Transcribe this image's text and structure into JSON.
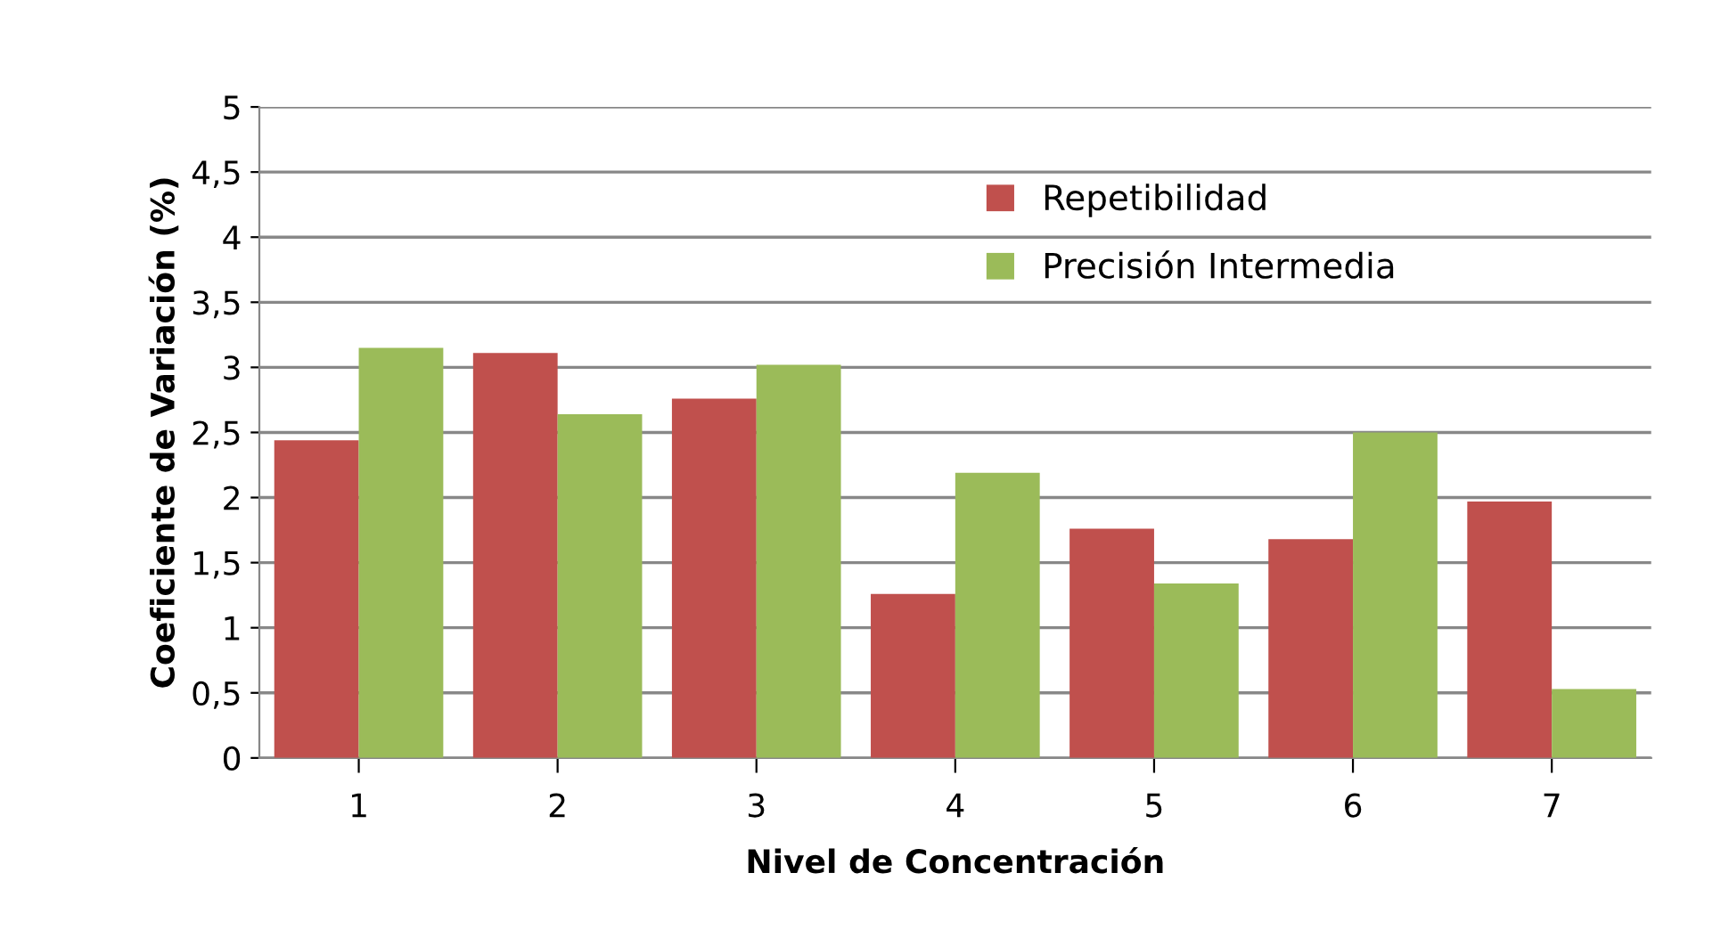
{
  "chart_data": {
    "type": "bar",
    "xlabel": "Nivel de Concentración",
    "ylabel": "Coeficiente de Variación (%)",
    "categories": [
      "1",
      "2",
      "3",
      "4",
      "5",
      "6",
      "7"
    ],
    "series": [
      {
        "name": "Repetibilidad",
        "color": "#c0504d",
        "values": [
          2.44,
          3.11,
          2.76,
          1.26,
          1.76,
          1.68,
          1.97
        ]
      },
      {
        "name": "Precisión Intermedia",
        "color": "#9bbb59",
        "values": [
          3.15,
          2.64,
          3.02,
          2.19,
          1.34,
          2.5,
          0.53
        ]
      }
    ],
    "ylim": [
      0,
      5
    ],
    "yticks": [
      0,
      {
        "value": 0.5,
        "label": "0,5"
      },
      1,
      {
        "value": 1.5,
        "label": "1,5"
      },
      2,
      {
        "value": 2.5,
        "label": "2,5"
      },
      3,
      {
        "value": 3.5,
        "label": "3,5"
      },
      4,
      {
        "value": 4.5,
        "label": "4,5"
      },
      5
    ],
    "grid": "y",
    "legend": "top right"
  }
}
